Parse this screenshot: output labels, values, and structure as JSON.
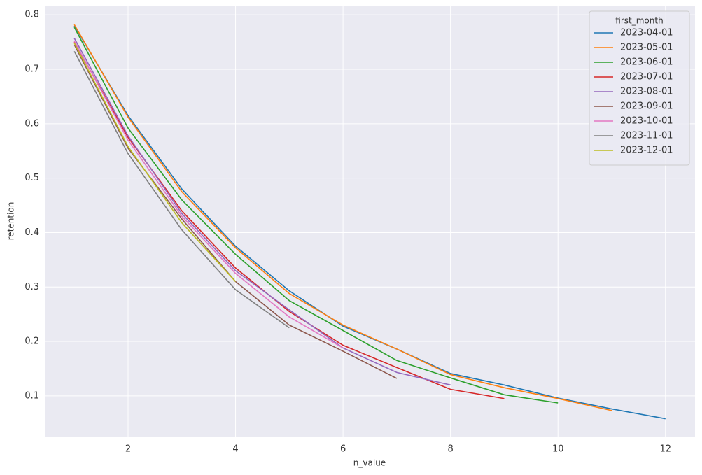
{
  "chart_data": {
    "type": "line",
    "x_label": "n_value",
    "y_label": "retention",
    "x": [
      1,
      2,
      3,
      4,
      5,
      6,
      7,
      8,
      9,
      10,
      11,
      12
    ],
    "xlim": [
      0.45,
      12.55
    ],
    "xticks": [
      2,
      4,
      6,
      8,
      10,
      12
    ],
    "ylim": [
      0.024,
      0.817
    ],
    "yticks": [
      0.1,
      0.2,
      0.3,
      0.4,
      0.5,
      0.6,
      0.7,
      0.8
    ],
    "grid": true,
    "legend_title": "first_month",
    "legend_position": "upper-right",
    "series": [
      {
        "name": "2023-04-01",
        "color": "#1f77b4",
        "values": [
          0.78,
          0.615,
          0.48,
          0.375,
          0.293,
          0.228,
          0.186,
          0.141,
          0.12,
          0.096,
          0.076,
          0.058
        ]
      },
      {
        "name": "2023-05-01",
        "color": "#ff7f0e",
        "values": [
          0.782,
          0.612,
          0.475,
          0.372,
          0.288,
          0.23,
          0.186,
          0.139,
          0.115,
          0.095,
          0.073,
          null
        ]
      },
      {
        "name": "2023-06-01",
        "color": "#2ca02c",
        "values": [
          0.777,
          0.592,
          0.46,
          0.36,
          0.275,
          0.22,
          0.165,
          0.133,
          0.102,
          0.087,
          null,
          null
        ]
      },
      {
        "name": "2023-07-01",
        "color": "#d62728",
        "values": [
          0.75,
          0.575,
          0.44,
          0.335,
          0.255,
          0.193,
          0.152,
          0.112,
          0.095,
          null,
          null,
          null
        ]
      },
      {
        "name": "2023-08-01",
        "color": "#9467bd",
        "values": [
          0.757,
          0.578,
          0.435,
          0.33,
          0.258,
          0.188,
          0.143,
          0.12,
          null,
          null,
          null,
          null
        ]
      },
      {
        "name": "2023-09-01",
        "color": "#8c564b",
        "values": [
          0.745,
          0.555,
          0.425,
          0.31,
          0.23,
          0.182,
          0.132,
          null,
          null,
          null,
          null,
          null
        ]
      },
      {
        "name": "2023-10-01",
        "color": "#e377c2",
        "values": [
          0.752,
          0.57,
          0.43,
          0.325,
          0.245,
          0.188,
          null,
          null,
          null,
          null,
          null,
          null
        ]
      },
      {
        "name": "2023-11-01",
        "color": "#7f7f7f",
        "values": [
          0.733,
          0.545,
          0.405,
          0.295,
          0.225,
          null,
          null,
          null,
          null,
          null,
          null,
          null
        ]
      },
      {
        "name": "2023-12-01",
        "color": "#bcbd22",
        "values": [
          0.748,
          0.558,
          0.418,
          0.31,
          null,
          null,
          null,
          null,
          null,
          null,
          null,
          null
        ]
      }
    ]
  }
}
